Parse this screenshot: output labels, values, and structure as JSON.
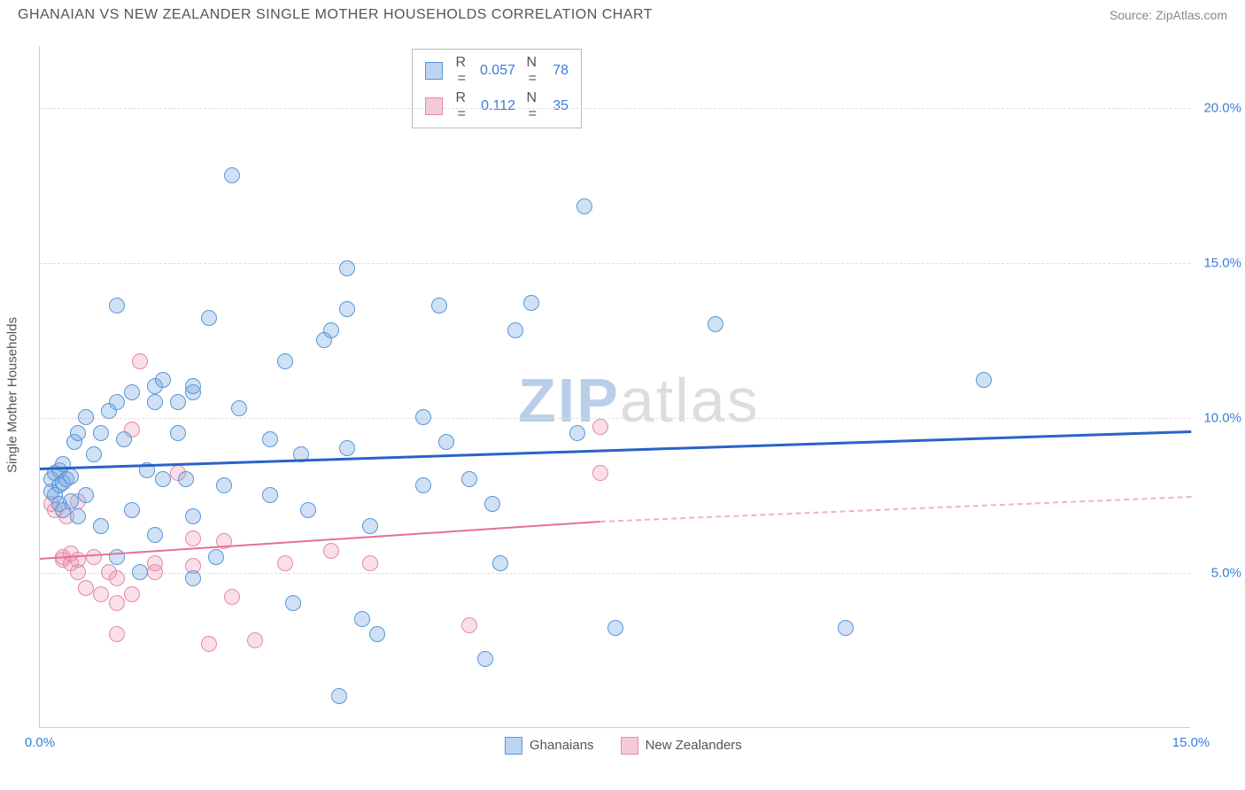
{
  "header": {
    "title": "GHANAIAN VS NEW ZEALANDER SINGLE MOTHER HOUSEHOLDS CORRELATION CHART",
    "source": "Source: ZipAtlas.com"
  },
  "watermark": {
    "part1": "ZIP",
    "part2": "atlas"
  },
  "chart": {
    "type": "scatter",
    "y_axis_label": "Single Mother Households",
    "background_color": "#ffffff",
    "grid_color": "#dddddd",
    "axis_color": "#cccccc",
    "tick_label_color": "#3b7dd8",
    "axis_label_color": "#555555",
    "label_fontsize": 15,
    "xlim": [
      0,
      15
    ],
    "ylim": [
      0,
      22
    ],
    "y_ticks": [
      5,
      10,
      15,
      20
    ],
    "y_tick_labels": [
      "5.0%",
      "10.0%",
      "15.0%",
      "20.0%"
    ],
    "x_ticks": [
      0,
      15
    ],
    "x_tick_labels": [
      "0.0%",
      "15.0%"
    ],
    "marker_size": 18,
    "series": {
      "ghanaians": {
        "label": "Ghanaians",
        "fill_color": "rgba(120,170,225,0.35)",
        "stroke_color": "#5a96d6",
        "trend_color": "#2963c8",
        "trend_width": 3,
        "r_value": "0.057",
        "n_value": "78",
        "trend": {
          "x1": 0,
          "y1": 8.4,
          "x2": 15,
          "y2": 9.6
        },
        "points": [
          [
            0.15,
            7.6
          ],
          [
            0.15,
            8.0
          ],
          [
            0.2,
            7.5
          ],
          [
            0.2,
            8.2
          ],
          [
            0.25,
            7.2
          ],
          [
            0.25,
            7.8
          ],
          [
            0.25,
            8.3
          ],
          [
            0.3,
            7.0
          ],
          [
            0.3,
            7.9
          ],
          [
            0.3,
            8.5
          ],
          [
            0.35,
            8.0
          ],
          [
            0.4,
            7.3
          ],
          [
            0.4,
            8.1
          ],
          [
            0.45,
            9.2
          ],
          [
            0.5,
            6.8
          ],
          [
            0.5,
            9.5
          ],
          [
            0.6,
            7.5
          ],
          [
            0.6,
            10.0
          ],
          [
            0.7,
            8.8
          ],
          [
            0.8,
            9.5
          ],
          [
            0.8,
            6.5
          ],
          [
            0.9,
            10.2
          ],
          [
            1.0,
            5.5
          ],
          [
            1.0,
            10.5
          ],
          [
            1.0,
            13.6
          ],
          [
            1.1,
            9.3
          ],
          [
            1.2,
            7.0
          ],
          [
            1.2,
            10.8
          ],
          [
            1.3,
            5.0
          ],
          [
            1.4,
            8.3
          ],
          [
            1.5,
            6.2
          ],
          [
            1.5,
            10.5
          ],
          [
            1.5,
            11.0
          ],
          [
            1.6,
            8.0
          ],
          [
            1.6,
            11.2
          ],
          [
            1.8,
            9.5
          ],
          [
            1.8,
            10.5
          ],
          [
            1.9,
            8.0
          ],
          [
            2.0,
            4.8
          ],
          [
            2.0,
            6.8
          ],
          [
            2.0,
            10.8
          ],
          [
            2.0,
            11.0
          ],
          [
            2.2,
            13.2
          ],
          [
            2.3,
            5.5
          ],
          [
            2.4,
            7.8
          ],
          [
            2.5,
            17.8
          ],
          [
            2.6,
            10.3
          ],
          [
            3.0,
            7.5
          ],
          [
            3.0,
            9.3
          ],
          [
            3.2,
            11.8
          ],
          [
            3.3,
            4.0
          ],
          [
            3.4,
            8.8
          ],
          [
            3.5,
            7.0
          ],
          [
            3.7,
            12.5
          ],
          [
            3.8,
            12.8
          ],
          [
            3.9,
            1.0
          ],
          [
            4.0,
            9.0
          ],
          [
            4.0,
            13.5
          ],
          [
            4.0,
            14.8
          ],
          [
            4.2,
            3.5
          ],
          [
            4.3,
            6.5
          ],
          [
            4.4,
            3.0
          ],
          [
            5.0,
            7.8
          ],
          [
            5.0,
            10.0
          ],
          [
            5.2,
            13.6
          ],
          [
            5.3,
            9.2
          ],
          [
            5.6,
            8.0
          ],
          [
            5.8,
            2.2
          ],
          [
            5.9,
            7.2
          ],
          [
            6.0,
            5.3
          ],
          [
            6.2,
            12.8
          ],
          [
            6.4,
            13.7
          ],
          [
            7.0,
            9.5
          ],
          [
            7.1,
            16.8
          ],
          [
            7.5,
            3.2
          ],
          [
            8.8,
            13.0
          ],
          [
            10.5,
            3.2
          ],
          [
            12.3,
            11.2
          ]
        ]
      },
      "new_zealanders": {
        "label": "New Zealanders",
        "fill_color": "rgba(235,150,175,0.30)",
        "stroke_color": "#e38aa5",
        "trend_color": "#e66f93",
        "trend_dash_color": "#eeb3c4",
        "trend_width": 2.5,
        "r_value": "0.112",
        "n_value": "35",
        "trend_solid": {
          "x1": 0,
          "y1": 5.5,
          "x2": 7.3,
          "y2": 6.7
        },
        "trend_dash": {
          "x1": 7.3,
          "y1": 6.7,
          "x2": 15,
          "y2": 7.5
        },
        "points": [
          [
            0.15,
            7.2
          ],
          [
            0.2,
            7.0
          ],
          [
            0.3,
            5.4
          ],
          [
            0.3,
            5.5
          ],
          [
            0.35,
            6.8
          ],
          [
            0.4,
            5.3
          ],
          [
            0.4,
            5.6
          ],
          [
            0.5,
            5.0
          ],
          [
            0.5,
            5.4
          ],
          [
            0.5,
            7.3
          ],
          [
            0.6,
            4.5
          ],
          [
            0.7,
            5.5
          ],
          [
            0.8,
            4.3
          ],
          [
            0.9,
            5.0
          ],
          [
            1.0,
            4.0
          ],
          [
            1.0,
            4.8
          ],
          [
            1.0,
            3.0
          ],
          [
            1.2,
            4.3
          ],
          [
            1.2,
            9.6
          ],
          [
            1.3,
            11.8
          ],
          [
            1.5,
            5.0
          ],
          [
            1.5,
            5.3
          ],
          [
            1.8,
            8.2
          ],
          [
            2.0,
            5.2
          ],
          [
            2.0,
            6.1
          ],
          [
            2.2,
            2.7
          ],
          [
            2.4,
            6.0
          ],
          [
            2.5,
            4.2
          ],
          [
            2.8,
            2.8
          ],
          [
            3.2,
            5.3
          ],
          [
            3.8,
            5.7
          ],
          [
            4.3,
            5.3
          ],
          [
            5.6,
            3.3
          ],
          [
            7.3,
            8.2
          ],
          [
            7.3,
            9.7
          ]
        ]
      }
    }
  },
  "stats_box": {
    "r_label": "R =",
    "n_label": "N ="
  },
  "bottom_legend": {
    "item1": "Ghanaians",
    "item2": "New Zealanders"
  }
}
